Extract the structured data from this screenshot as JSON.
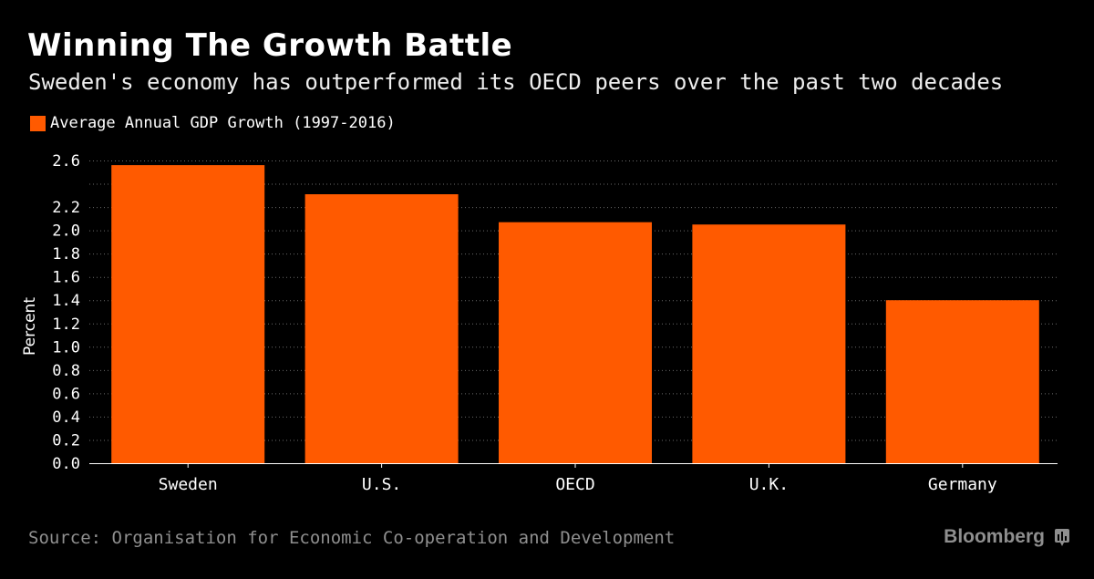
{
  "header": {
    "title": "Winning The Growth Battle",
    "subtitle": "Sweden's economy has outperformed its OECD peers over the past two decades"
  },
  "legend": {
    "label": "Average Annual GDP Growth (1997-2016)",
    "color": "#ff5a00"
  },
  "chart_data": {
    "type": "bar",
    "categories": [
      "Sweden",
      "U.S.",
      "OECD",
      "U.K.",
      "Germany"
    ],
    "series": [
      {
        "name": "Average Annual GDP Growth (1997-2016)",
        "values": [
          2.56,
          2.31,
          2.07,
          2.05,
          1.4
        ]
      }
    ],
    "ylabel": "Percent",
    "xlabel": "",
    "ylim": [
      0,
      2.6
    ],
    "yticks": [
      0.0,
      0.2,
      0.4,
      0.6,
      0.8,
      1.0,
      1.2,
      1.4,
      1.6,
      1.8,
      2.0,
      2.2,
      2.6
    ],
    "ytick_labels": [
      "0.0",
      "0.2",
      "0.4",
      "0.6",
      "0.8",
      "1.0",
      "1.2",
      "1.4",
      "1.6",
      "1.8",
      "2.0",
      "2.2",
      "2.6"
    ],
    "grid": true,
    "legend_position": "top-left",
    "bar_color": "#ff5a00"
  },
  "footer": {
    "source": "Source: Organisation for Economic Co-operation and Development",
    "brand": "Bloomberg",
    "brand_icon": "bloomberg-terminal-icon"
  }
}
